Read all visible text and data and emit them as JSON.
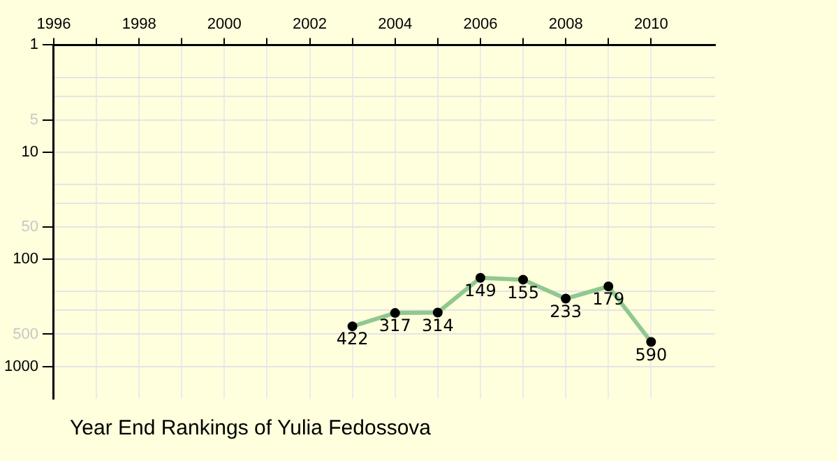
{
  "chart_data": {
    "type": "line",
    "title": "Year End Rankings of Yulia Fedossova",
    "x": [
      2003,
      2004,
      2005,
      2006,
      2007,
      2008,
      2009,
      2010
    ],
    "values": [
      422,
      317,
      314,
      149,
      155,
      233,
      179,
      590
    ],
    "color": "#90c890",
    "xlim": [
      1996,
      2011.5
    ],
    "xticks": [
      1996,
      {
        "value": 1997,
        "label": null
      },
      1998,
      {
        "value": 1999,
        "label": null
      },
      2000,
      {
        "value": 2001,
        "label": null
      },
      2002,
      {
        "value": 2003,
        "label": null
      },
      2004,
      {
        "value": 2005,
        "label": null
      },
      2006,
      {
        "value": 2007,
        "label": null
      },
      2008,
      {
        "value": 2009,
        "label": null
      },
      2010
    ],
    "ylim": [
      2000,
      1
    ],
    "yticks": [
      1,
      {
        "value": 2,
        "label": null
      },
      {
        "value": 3,
        "label": null
      },
      5,
      10,
      {
        "value": 20,
        "label": null
      },
      {
        "value": 30,
        "label": null
      },
      50,
      100,
      {
        "value": 200,
        "label": null
      },
      {
        "value": 300,
        "label": null
      },
      500,
      1000
    ],
    "log": "y",
    "grid": true,
    "legend": false,
    "marker": "circle",
    "line_style": "solid",
    "data_labels": true
  }
}
